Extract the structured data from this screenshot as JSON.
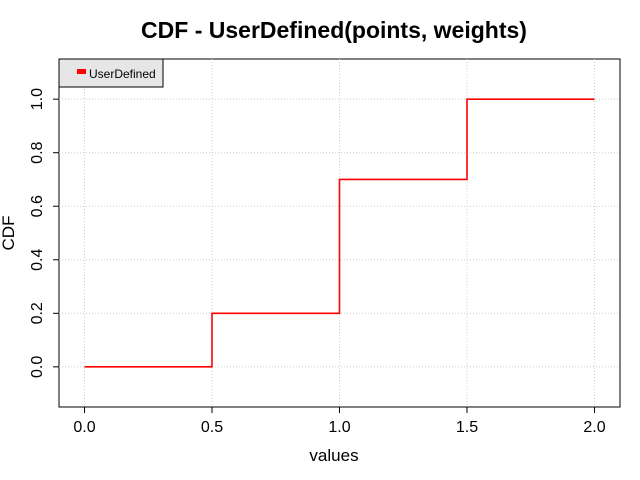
{
  "chart_data": {
    "type": "line",
    "step": true,
    "title": "CDF - UserDefined(points, weights)",
    "xlabel": "values",
    "ylabel": "CDF",
    "xlim": [
      -0.1,
      2.1
    ],
    "ylim": [
      -0.15,
      1.15
    ],
    "xticks": [
      0.0,
      0.5,
      1.0,
      1.5,
      2.0
    ],
    "xtick_labels": [
      "0.0",
      "0.5",
      "1.0",
      "1.5",
      "2.0"
    ],
    "yticks": [
      0.0,
      0.2,
      0.4,
      0.6,
      0.8,
      1.0
    ],
    "ytick_labels": [
      "0.0",
      "0.2",
      "0.4",
      "0.6",
      "0.8",
      "1.0"
    ],
    "grid": true,
    "legend_position": "top-left",
    "series": [
      {
        "name": "UserDefined",
        "color": "#ff0000",
        "x": [
          0.0,
          0.5,
          1.0,
          1.5,
          2.0
        ],
        "y": [
          0.0,
          0.2,
          0.7,
          1.0,
          1.0
        ]
      }
    ]
  }
}
